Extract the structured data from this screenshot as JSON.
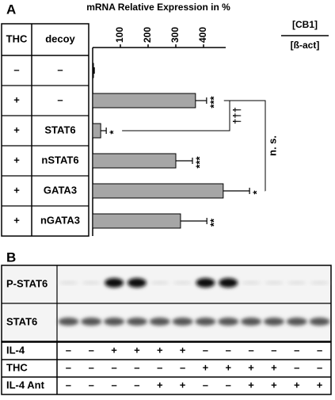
{
  "panel_a_label": "A",
  "panel_b_label": "B",
  "condition_table": {
    "headers": [
      "THC",
      "decoy"
    ],
    "rows": [
      [
        "–",
        "–"
      ],
      [
        "+",
        "–"
      ],
      [
        "+",
        "STAT6"
      ],
      [
        "+",
        "nSTAT6"
      ],
      [
        "+",
        "GATA3"
      ],
      [
        "+",
        "nGATA3"
      ]
    ]
  },
  "chart_data": {
    "type": "bar",
    "orientation": "horizontal",
    "title": "mRNA Relative Expression in %",
    "ratio_numerator": "[CB1]",
    "ratio_denominator": "[ß-act]",
    "categories": [
      null,
      null,
      null,
      null,
      null,
      null
    ],
    "values": [
      3,
      371,
      29,
      300,
      471,
      317
    ],
    "errors": [
      3,
      40,
      20,
      60,
      95,
      95
    ],
    "color": "#a6a6a6",
    "xlim": [
      0,
      480
    ],
    "xticks": [
      100,
      200,
      300,
      400
    ],
    "significance": [
      null,
      "***",
      "*",
      "***",
      "*",
      "**"
    ],
    "bracket_dagger": "†††",
    "bracket_ns": "n. s."
  },
  "blot": {
    "rows": [
      "P-STAT6",
      "STAT6"
    ]
  },
  "treatment_table": {
    "rows": [
      {
        "label": "IL-4",
        "cells": [
          "–",
          "–",
          "+",
          "+",
          "+",
          "+",
          "–",
          "–",
          "–",
          "–",
          "–",
          "–"
        ]
      },
      {
        "label": "THC",
        "cells": [
          "–",
          "–",
          "–",
          "–",
          "–",
          "–",
          "+",
          "+",
          "+",
          "+",
          "–",
          "–"
        ]
      },
      {
        "label": "IL-4 Ant",
        "cells": [
          "–",
          "–",
          "–",
          "–",
          "+",
          "+",
          "–",
          "–",
          "+",
          "+",
          "+",
          "+"
        ]
      }
    ]
  }
}
